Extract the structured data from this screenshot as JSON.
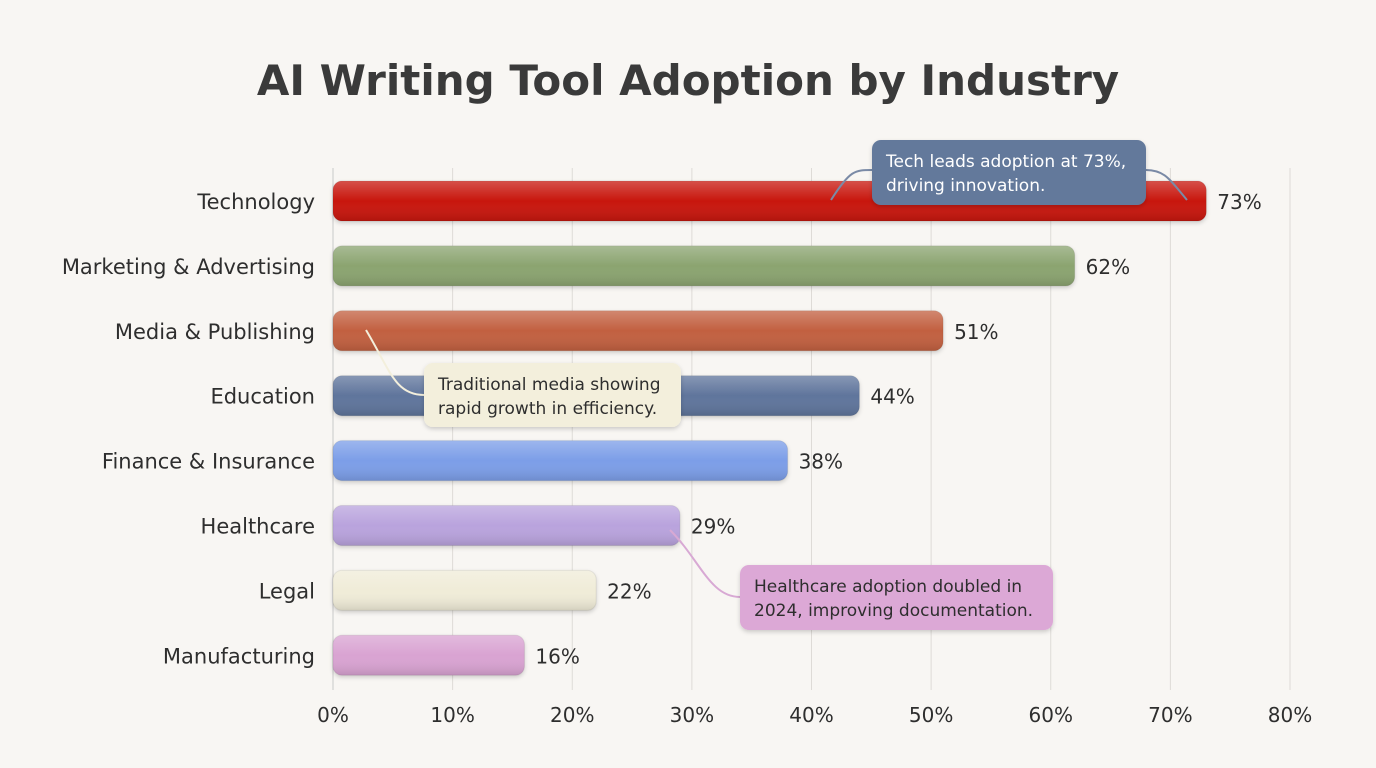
{
  "chart_data": {
    "type": "bar",
    "orientation": "horizontal",
    "title": "AI Writing Tool Adoption by Industry",
    "xlabel": "",
    "ylabel": "",
    "xlim": [
      0,
      80
    ],
    "x_ticks": [
      "0%",
      "10%",
      "20%",
      "30%",
      "40%",
      "50%",
      "60%",
      "70%",
      "80%"
    ],
    "grid": "vertical",
    "categories": [
      "Technology",
      "Marketing & Advertising",
      "Media & Publishing",
      "Education",
      "Finance & Insurance",
      "Healthcare",
      "Legal",
      "Manufacturing"
    ],
    "values": [
      73,
      62,
      51,
      44,
      38,
      29,
      22,
      16
    ],
    "value_labels": [
      "73%",
      "62%",
      "51%",
      "44%",
      "38%",
      "29%",
      "22%",
      "16%"
    ],
    "colors": [
      "#c8140c",
      "#8ba46f",
      "#c2603f",
      "#5e749c",
      "#7b9ee8",
      "#b9a3dd",
      "#f0ecd8",
      "#d9a3d2"
    ],
    "annotations": [
      {
        "category": "Technology",
        "lines": [
          "Tech leads adoption at 73%,",
          "driving innovation."
        ],
        "bg": "#63799b",
        "color": "#ffffff"
      },
      {
        "category": "Media & Publishing",
        "lines": [
          "Traditional media showing",
          "rapid growth in efficiency."
        ],
        "bg": "#f3efdc",
        "color": "#2e2e2e"
      },
      {
        "category": "Healthcare",
        "lines": [
          "Healthcare adoption doubled in",
          "2024, improving documentation."
        ],
        "bg": "#dca8d6",
        "color": "#2e2e2e"
      }
    ]
  }
}
